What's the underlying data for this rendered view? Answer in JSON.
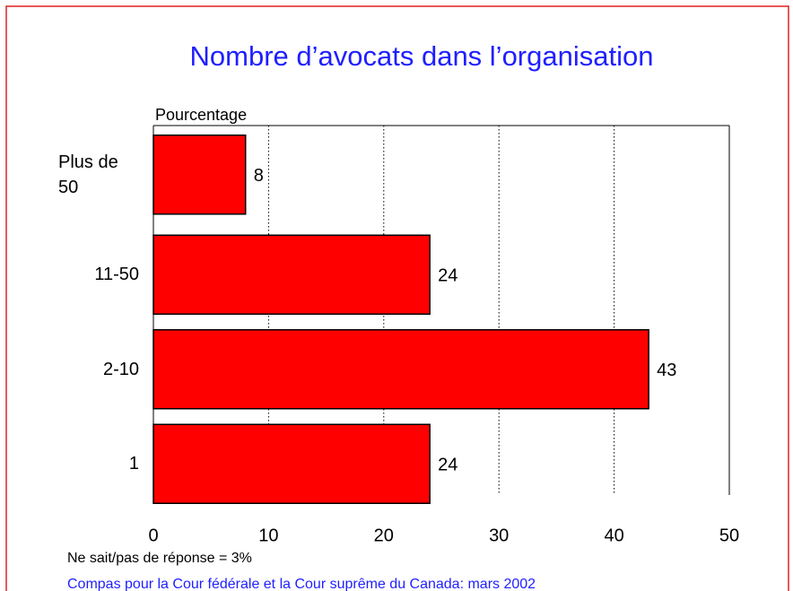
{
  "chart_data": {
    "type": "bar",
    "orientation": "horizontal",
    "title": "Nombre d’avocats dans l’organisation",
    "x_label": "Pourcentage",
    "categories": [
      "Plus de 50",
      "11-50",
      "2-10",
      "1"
    ],
    "values": [
      8,
      24,
      43,
      24
    ],
    "color": "#ff0000",
    "xlim": [
      0,
      50
    ],
    "xticks": [
      0,
      10,
      20,
      30,
      40,
      50
    ],
    "grid": true,
    "note": "Ne sait/pas de réponse = 3%",
    "source": "Compas pour la Cour fédérale et la Cour suprême du Canada: mars 2002"
  }
}
